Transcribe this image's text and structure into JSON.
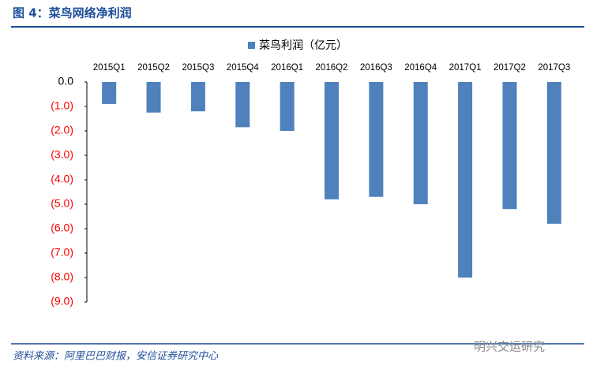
{
  "chart_data": {
    "type": "bar",
    "title": "图 4：菜鸟网络净利润",
    "source": "资料来源：阿里巴巴财报，安信证券研究中心",
    "watermark": "明兴交运研究",
    "categories": [
      "2015Q1",
      "2015Q2",
      "2015Q3",
      "2015Q4",
      "2016Q1",
      "2016Q2",
      "2016Q3",
      "2016Q4",
      "2017Q1",
      "2017Q2",
      "2017Q3"
    ],
    "series": [
      {
        "name": "菜鸟利润（亿元）",
        "color": "#4f81bd",
        "values": [
          -0.9,
          -1.25,
          -1.2,
          -1.85,
          -2.0,
          -4.8,
          -4.7,
          -5.0,
          -8.0,
          -5.2,
          -5.8
        ]
      }
    ],
    "ylim": [
      -9,
      0
    ],
    "yticks": [
      {
        "value": 0,
        "label": "0.0"
      },
      {
        "value": -1,
        "label": "(1.0)"
      },
      {
        "value": -2,
        "label": "(2.0)"
      },
      {
        "value": -3,
        "label": "(3.0)"
      },
      {
        "value": -4,
        "label": "(4.0)"
      },
      {
        "value": -5,
        "label": "(5.0)"
      },
      {
        "value": -6,
        "label": "(6.0)"
      },
      {
        "value": -7,
        "label": "(7.0)"
      },
      {
        "value": -8,
        "label": "(8.0)"
      },
      {
        "value": -9,
        "label": "(9.0)"
      }
    ],
    "negative_label_color": "#ff0000",
    "legend": "top"
  }
}
